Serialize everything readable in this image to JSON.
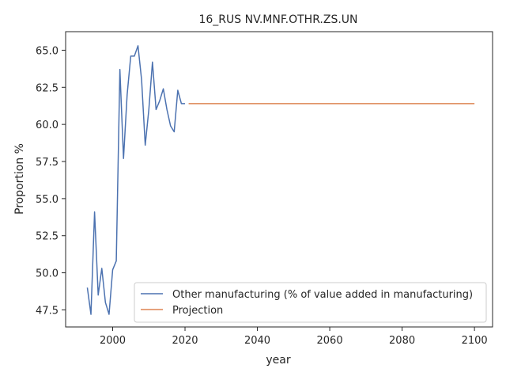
{
  "chart_data": {
    "type": "line",
    "title": "16_RUS NV.MNF.OTHR.ZS.UN",
    "xlabel": "year",
    "ylabel": "Proportion %",
    "xlim": [
      1987,
      2105
    ],
    "ylim": [
      46.35,
      66.25
    ],
    "xticks": [
      2000,
      2020,
      2040,
      2060,
      2080,
      2100
    ],
    "yticks": [
      47.5,
      50.0,
      52.5,
      55.0,
      57.5,
      60.0,
      62.5,
      65.0
    ],
    "ytick_labels": [
      "47.5",
      "50.0",
      "52.5",
      "55.0",
      "57.5",
      "60.0",
      "62.5",
      "65.0"
    ],
    "grid": false,
    "legend_position": "lower-right",
    "colors": {
      "historical": "#4c72b0",
      "projection": "#dd8452"
    },
    "series": [
      {
        "name": "Other manufacturing (% of value added in manufacturing)",
        "x": [
          1993,
          1994,
          1995,
          1996,
          1997,
          1998,
          1999,
          2000,
          2001,
          2002,
          2003,
          2004,
          2005,
          2006,
          2007,
          2008,
          2009,
          2010,
          2011,
          2012,
          2013,
          2014,
          2015,
          2016,
          2017,
          2018,
          2019,
          2020
        ],
        "values": [
          49.0,
          47.2,
          54.1,
          48.5,
          50.3,
          48.0,
          47.2,
          50.2,
          50.8,
          63.7,
          57.7,
          62.0,
          64.6,
          64.6,
          65.3,
          63.0,
          58.6,
          61.0,
          64.2,
          61.0,
          61.6,
          62.4,
          61.0,
          59.9,
          59.5,
          62.3,
          61.4,
          61.4
        ]
      },
      {
        "name": "Projection",
        "x": [
          2021,
          2100
        ],
        "values": [
          61.4,
          61.4
        ]
      }
    ]
  }
}
